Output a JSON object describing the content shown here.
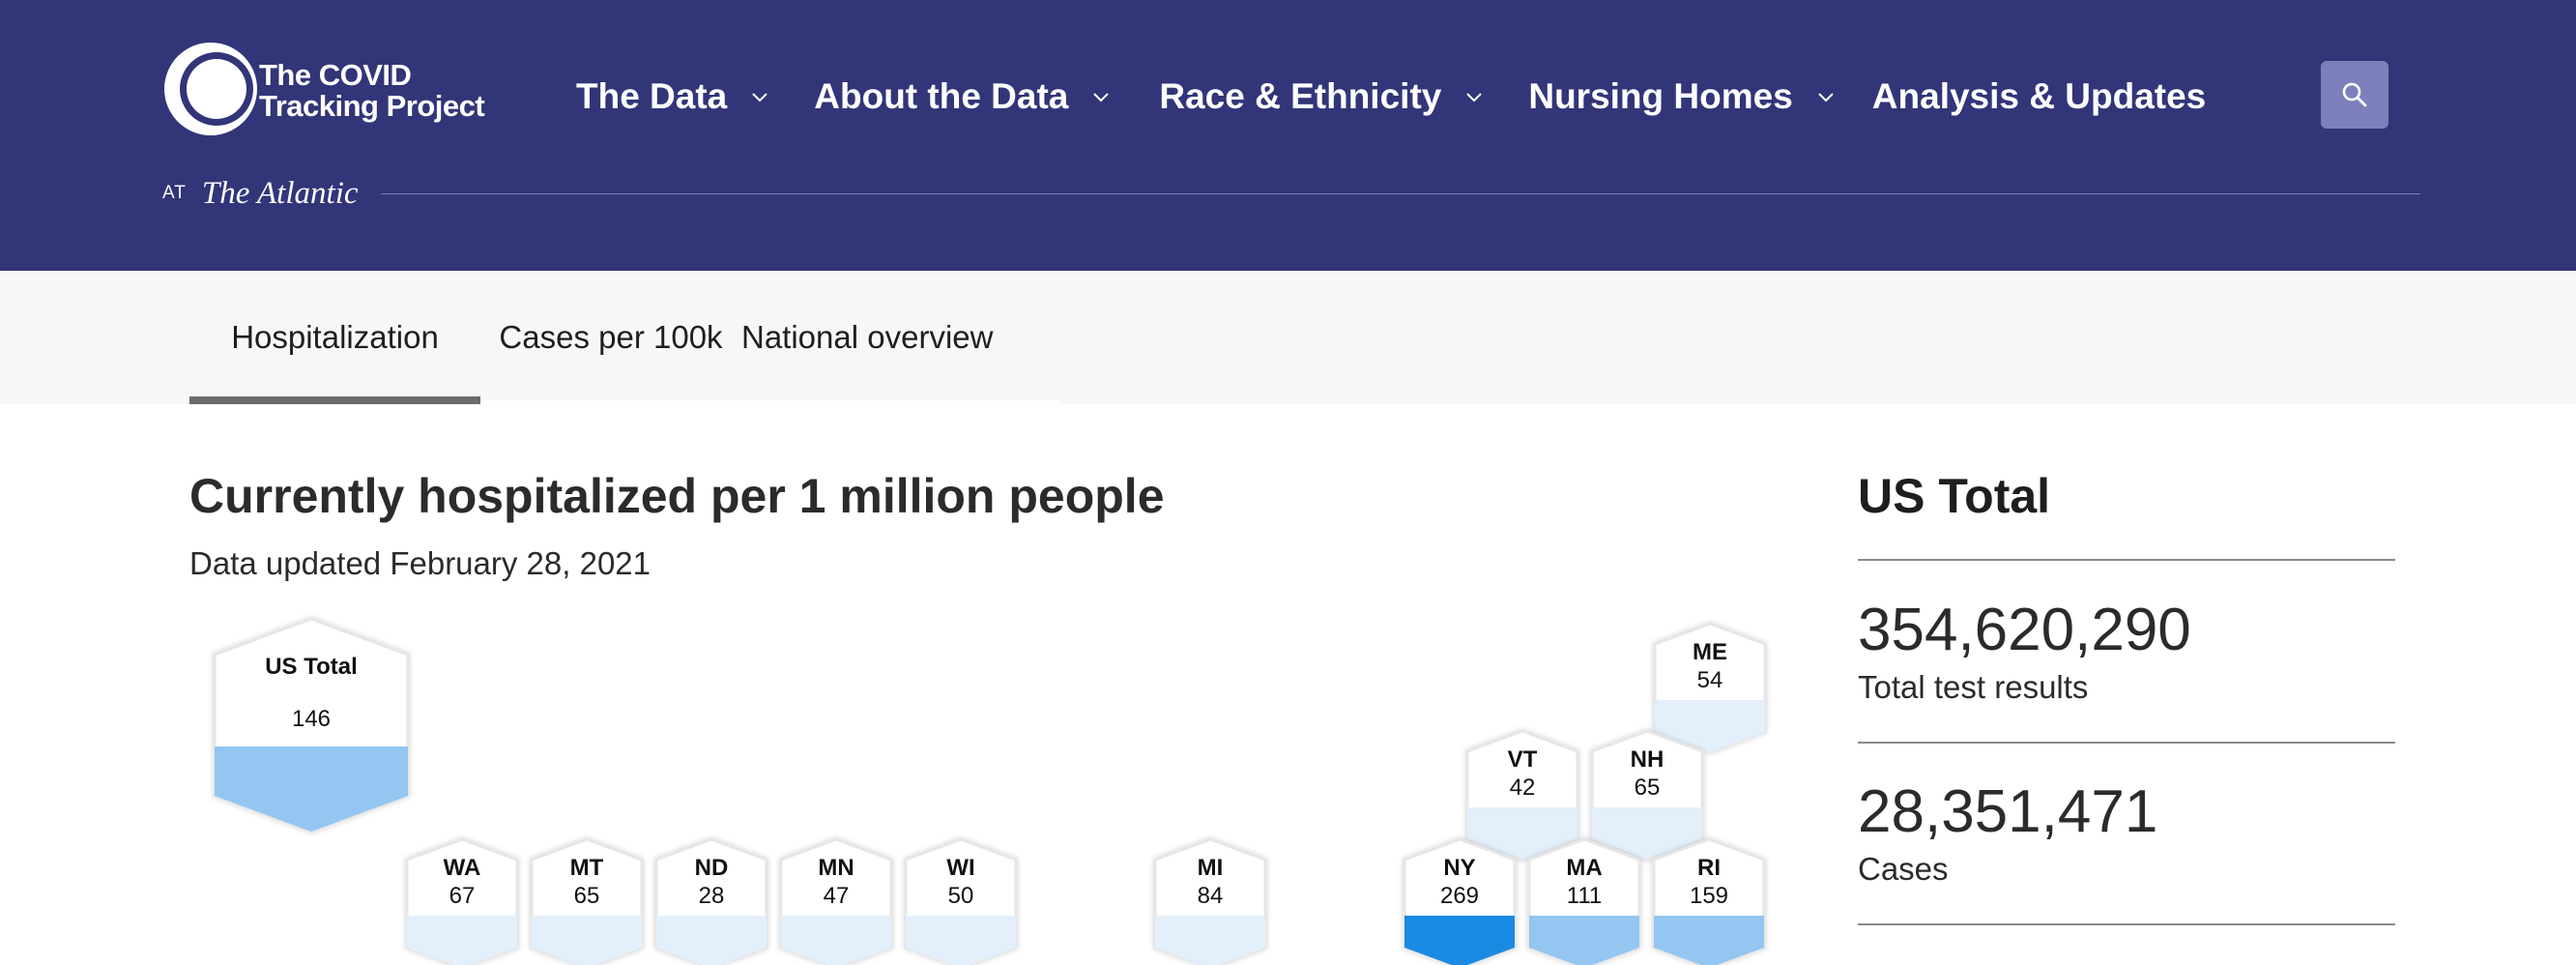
{
  "brand": {
    "line1": "The COVID",
    "line2": "Tracking Project",
    "at_label": "AT",
    "partner": "The Atlantic"
  },
  "nav": {
    "items": [
      {
        "label": "The Data",
        "has_dropdown": true
      },
      {
        "label": "About the Data",
        "has_dropdown": true
      },
      {
        "label": "Race & Ethnicity",
        "has_dropdown": true
      },
      {
        "label": "Nursing Homes",
        "has_dropdown": true
      },
      {
        "label": "Analysis & Updates",
        "has_dropdown": false
      }
    ],
    "search_icon": "search-icon"
  },
  "tabs": [
    {
      "label": "Hospitalization",
      "active": true
    },
    {
      "label": "Cases per 100k",
      "active": false
    },
    {
      "label": "National overview",
      "active": false
    }
  ],
  "main": {
    "title": "Currently hospitalized per 1 million people",
    "updated": "Data updated February 28, 2021",
    "us_total": {
      "label": "US Total",
      "value": "146"
    },
    "states": [
      {
        "code": "ME",
        "value": "54"
      },
      {
        "code": "VT",
        "value": "42"
      },
      {
        "code": "NH",
        "value": "65"
      },
      {
        "code": "WA",
        "value": "67"
      },
      {
        "code": "MT",
        "value": "65"
      },
      {
        "code": "ND",
        "value": "28"
      },
      {
        "code": "MN",
        "value": "47"
      },
      {
        "code": "WI",
        "value": "50"
      },
      {
        "code": "MI",
        "value": "84"
      },
      {
        "code": "NY",
        "value": "269"
      },
      {
        "code": "MA",
        "value": "111"
      },
      {
        "code": "RI",
        "value": "159"
      }
    ]
  },
  "sidebar": {
    "title": "US Total",
    "stats": [
      {
        "value": "354,620,290",
        "label": "Total test results"
      },
      {
        "value": "28,351,471",
        "label": "Cases"
      }
    ]
  },
  "colors": {
    "header_bg": "#323578",
    "search_bg": "#7d7fba",
    "level_light": "#e3f0fc",
    "level_mid": "#93c6f1",
    "level_high": "#1a8ae2"
  }
}
